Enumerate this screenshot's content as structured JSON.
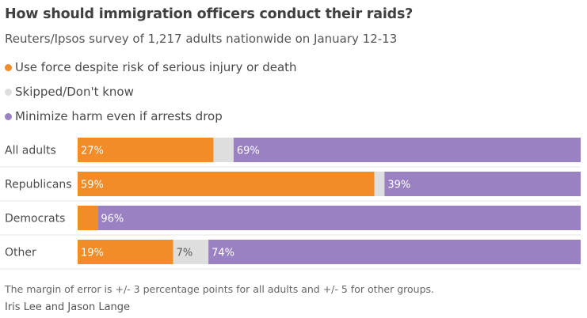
{
  "chart_data": {
    "type": "bar",
    "orientation": "horizontal-stacked-100",
    "title": "How should immigration officers conduct their raids?",
    "subtitle": "Reuters/Ipsos survey of 1,217 adults nationwide on January 12-13",
    "categories": [
      "All adults",
      "Republicans",
      "Democrats",
      "Other"
    ],
    "series": [
      {
        "name": "Use force despite risk of serious injury or death",
        "color": "#f28c28",
        "values": [
          27,
          59,
          4,
          19
        ],
        "labels": [
          "27%",
          "59%",
          "",
          "19%"
        ]
      },
      {
        "name": "Skipped/Don't know",
        "color": "#dedede",
        "values": [
          4,
          2,
          0,
          7
        ],
        "labels": [
          "",
          "",
          "",
          "7%"
        ]
      },
      {
        "name": "Minimize harm even if arrests drop",
        "color": "#9a82c2",
        "values": [
          69,
          39,
          96,
          74
        ],
        "labels": [
          "69%",
          "39%",
          "96%",
          "74%"
        ]
      }
    ],
    "xlim": [
      0,
      100
    ],
    "legend": "top-left",
    "footnote": "The margin of error is +/- 3 percentage points for all adults and +/- 5 for other groups.",
    "credit": "Iris Lee and Jason Lange"
  }
}
